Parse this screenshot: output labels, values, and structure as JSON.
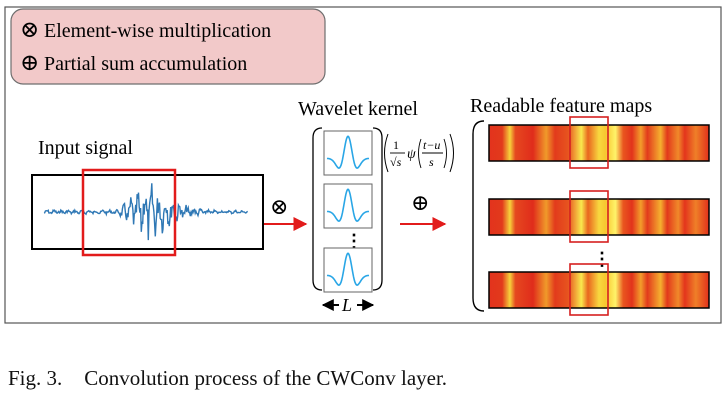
{
  "legend": {
    "items": [
      {
        "symbol": "⊗",
        "text": "Element-wise multiplication"
      },
      {
        "symbol": "⊕",
        "text": "Partial sum accumulation"
      }
    ],
    "background": "#f2c9c9",
    "border": "#6e6e6e"
  },
  "input_signal": {
    "title": "Input signal",
    "wave_color": "#2f78b5",
    "window_color": "#e21b1b"
  },
  "operators": {
    "multiply": "⊗",
    "accumulate": "⊕"
  },
  "wavelet_kernel": {
    "title": "Wavelet kernel",
    "kernel_count_shown": 3,
    "width_label": "L",
    "curve_color": "#29a6e6",
    "formula": {
      "numerator": "1",
      "denominator": "√s",
      "psi": "ψ",
      "arg_num": "t−u",
      "arg_den": "s"
    }
  },
  "feature_maps": {
    "title": "Readable feature maps",
    "rows_shown": 3,
    "highlight_color": "#d62020"
  },
  "ellipsis": "⋮",
  "caption": {
    "label": "Fig. 3.",
    "text": "Convolution process of the CWConv layer."
  },
  "colors": {
    "arrow": "#e21b1b",
    "frame": "#555555",
    "black": "#000000"
  }
}
